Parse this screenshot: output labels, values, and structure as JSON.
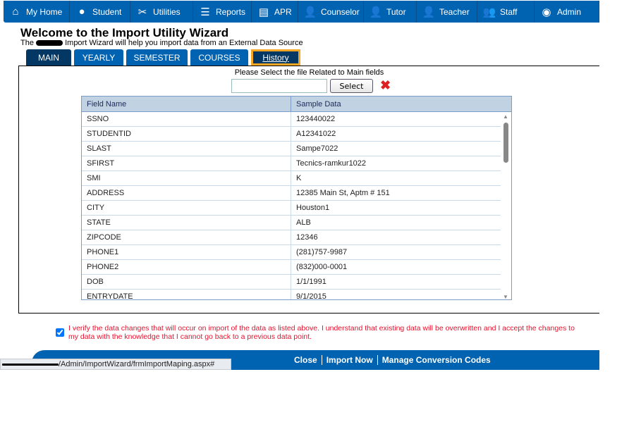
{
  "nav": [
    {
      "label": "My Home",
      "icon": "home-icon",
      "w": 94
    },
    {
      "label": "Student",
      "icon": "student-icon",
      "w": 86
    },
    {
      "label": "Utilities",
      "icon": "tools-icon",
      "w": 89
    },
    {
      "label": "Reports",
      "icon": "list-icon",
      "w": 83
    },
    {
      "label": "APR",
      "icon": "newspaper-icon",
      "w": 66
    },
    {
      "label": "Counselor",
      "icon": "counselor-icon",
      "w": 93
    },
    {
      "label": "Tutor",
      "icon": "tutor-icon",
      "w": 75
    },
    {
      "label": "Teacher",
      "icon": "teacher-icon",
      "w": 86
    },
    {
      "label": "Staff",
      "icon": "staff-icon",
      "w": 81
    },
    {
      "label": "Admin",
      "icon": "admin-icon",
      "w": 92
    }
  ],
  "header": {
    "title": "Welcome to the Import Utility Wizard",
    "subtitle_pre": "The",
    "subtitle_post": "Import Wizard will help you import data from an External Data Source"
  },
  "tabs": [
    "MAIN",
    "YEARLY",
    "SEMESTER",
    "COURSES",
    "History"
  ],
  "panel": {
    "prompt": "Please Select the file Related to Main fields",
    "file_value": "",
    "select_label": "Select"
  },
  "grid": {
    "columns": [
      "Field Name",
      "Sample Data"
    ],
    "rows": [
      [
        "SSNO",
        "123440022"
      ],
      [
        "STUDENTID",
        "A12341022"
      ],
      [
        "SLAST",
        "Sampe7022"
      ],
      [
        "SFIRST",
        "Tecnics-ramkur1022"
      ],
      [
        "SMI",
        "K"
      ],
      [
        "ADDRESS",
        "12385 Main St, Aptm # 151"
      ],
      [
        "CITY",
        "Houston1"
      ],
      [
        "STATE",
        "ALB"
      ],
      [
        "ZIPCODE",
        "12346"
      ],
      [
        "PHONE1",
        "(281)757-9987"
      ],
      [
        "PHONE2",
        "(832)000-0001"
      ],
      [
        "DOB",
        "1/1/1991"
      ],
      [
        "ENTRYDATE",
        "9/1/2015"
      ]
    ]
  },
  "verify": {
    "checked": true,
    "text": "I verify the data changes that will occur on import of the data as listed above. I understand that existing data will be overwritten and I accept the changes to my data with the knowledge that I cannot go back to a previous data point."
  },
  "footer": {
    "close": "Close",
    "import": "Import Now",
    "manage": "Manage Conversion Codes"
  },
  "status_url": "/Admin/ImportWizard/frmImportMaping.aspx#",
  "colors": {
    "brand": "#0063b1",
    "active_tab": "#033764",
    "highlight": "#f5a623",
    "warning": "#e8112d"
  }
}
